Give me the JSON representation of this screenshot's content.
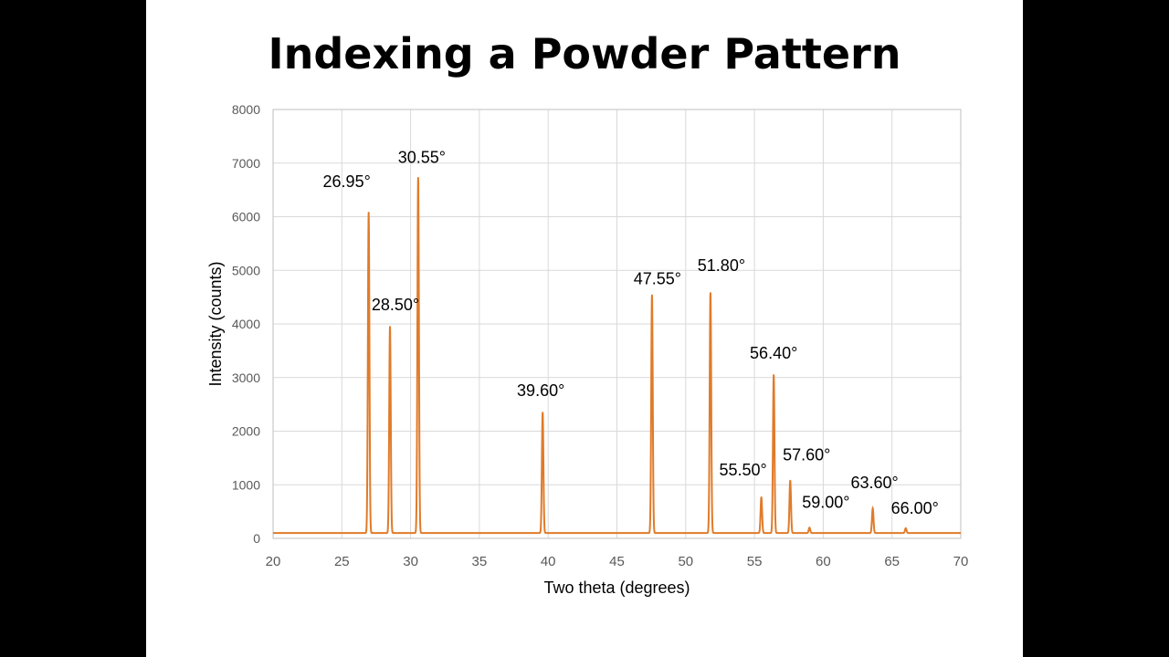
{
  "slide": {
    "title": "Indexing a Powder Pattern"
  },
  "colors": {
    "background": "#000000",
    "slide": "#ffffff",
    "series": "#e07b2a",
    "grid": "#d9d9d9",
    "axis_text": "#595959"
  },
  "chart_data": {
    "type": "line",
    "title": "",
    "xlabel": "Two theta (degrees)",
    "ylabel": "Intensity (counts)",
    "xlim": [
      20,
      70
    ],
    "ylim": [
      0,
      8000
    ],
    "xticks": [
      20,
      25,
      30,
      35,
      40,
      45,
      50,
      55,
      60,
      65,
      70
    ],
    "yticks": [
      0,
      1000,
      2000,
      3000,
      4000,
      5000,
      6000,
      7000,
      8000
    ],
    "grid": true,
    "legend": "none",
    "baseline": 100,
    "peaks": [
      {
        "two_theta": 26.95,
        "intensity": 6080,
        "label": "26.95°"
      },
      {
        "two_theta": 28.5,
        "intensity": 3950,
        "label": "28.50°"
      },
      {
        "two_theta": 30.55,
        "intensity": 6730,
        "label": "30.55°"
      },
      {
        "two_theta": 39.6,
        "intensity": 2350,
        "label": "39.60°"
      },
      {
        "two_theta": 47.55,
        "intensity": 4540,
        "label": "47.55°"
      },
      {
        "two_theta": 51.8,
        "intensity": 4580,
        "label": "51.80°"
      },
      {
        "two_theta": 55.5,
        "intensity": 770,
        "label": "55.50°"
      },
      {
        "two_theta": 56.4,
        "intensity": 3050,
        "label": "56.40°"
      },
      {
        "two_theta": 57.6,
        "intensity": 1080,
        "label": "57.60°"
      },
      {
        "two_theta": 59.0,
        "intensity": 200,
        "label": "59.00°"
      },
      {
        "two_theta": 63.6,
        "intensity": 560,
        "label": "63.60°"
      },
      {
        "two_theta": 66.0,
        "intensity": 190,
        "label": "66.00°"
      }
    ]
  }
}
